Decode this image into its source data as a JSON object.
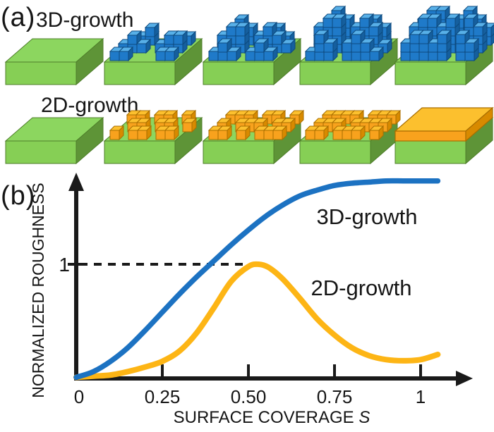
{
  "panel_a": {
    "label": "(a)",
    "row_3d": {
      "label": "3D-growth"
    },
    "row_2d": {
      "label": "2D-growth"
    }
  },
  "panel_b": {
    "label": "(b)",
    "ylabel": "NORMALIZED ROUGHNESS",
    "xlabel_text": "SURFACE COVERAGE ",
    "xlabel_symbol": "S",
    "ytick": "1",
    "xticks": [
      "0",
      "0.25",
      "0.50",
      "0.75",
      "1"
    ]
  },
  "chart_data": {
    "type": "line",
    "title": "",
    "xlabel": "SURFACE COVERAGE S",
    "ylabel": "NORMALIZED ROUGHNESS",
    "xlim": [
      0,
      1.12
    ],
    "ylim": [
      0,
      1.85
    ],
    "xticks": [
      0,
      0.25,
      0.5,
      0.75,
      1
    ],
    "yticks": [
      1
    ],
    "grid": false,
    "legend_position": "inline-labels",
    "dashed_guide": {
      "y": 1,
      "x_start": 0,
      "x_end": 0.53
    },
    "series": [
      {
        "name": "3D-growth",
        "color": "#1c72c2",
        "points": [
          [
            0,
            0.01
          ],
          [
            0.05,
            0.06
          ],
          [
            0.1,
            0.15
          ],
          [
            0.15,
            0.27
          ],
          [
            0.2,
            0.42
          ],
          [
            0.25,
            0.58
          ],
          [
            0.3,
            0.74
          ],
          [
            0.35,
            0.89
          ],
          [
            0.4,
            1.03
          ],
          [
            0.45,
            1.17
          ],
          [
            0.5,
            1.3
          ],
          [
            0.55,
            1.42
          ],
          [
            0.6,
            1.52
          ],
          [
            0.65,
            1.6
          ],
          [
            0.7,
            1.65
          ],
          [
            0.75,
            1.69
          ],
          [
            0.8,
            1.71
          ],
          [
            0.85,
            1.72
          ],
          [
            0.9,
            1.73
          ],
          [
            0.95,
            1.73
          ],
          [
            1.0,
            1.73
          ],
          [
            1.05,
            1.73
          ]
        ]
      },
      {
        "name": "2D-growth",
        "color": "#fdb515",
        "label_color": "#f59a1d",
        "points": [
          [
            0,
            0.01
          ],
          [
            0.05,
            0.02
          ],
          [
            0.1,
            0.03
          ],
          [
            0.15,
            0.06
          ],
          [
            0.2,
            0.1
          ],
          [
            0.25,
            0.15
          ],
          [
            0.3,
            0.24
          ],
          [
            0.35,
            0.4
          ],
          [
            0.4,
            0.62
          ],
          [
            0.45,
            0.85
          ],
          [
            0.5,
            0.98
          ],
          [
            0.53,
            1.0
          ],
          [
            0.56,
            0.97
          ],
          [
            0.6,
            0.87
          ],
          [
            0.65,
            0.7
          ],
          [
            0.7,
            0.52
          ],
          [
            0.75,
            0.38
          ],
          [
            0.8,
            0.27
          ],
          [
            0.85,
            0.2
          ],
          [
            0.9,
            0.165
          ],
          [
            0.95,
            0.155
          ],
          [
            1.0,
            0.165
          ],
          [
            1.05,
            0.21
          ]
        ]
      }
    ]
  },
  "illustration": {
    "stages_3d": [
      null,
      [
        [
          0,
          1,
          2,
          0,
          0,
          1,
          1,
          0
        ],
        [
          1,
          2,
          1,
          0,
          1,
          2,
          2,
          0
        ],
        [
          1,
          1,
          0,
          0,
          0,
          1,
          1,
          0
        ]
      ],
      [
        [
          1,
          3,
          2,
          0,
          1,
          2,
          1,
          0
        ],
        [
          2,
          3,
          3,
          0,
          2,
          3,
          2,
          1
        ],
        [
          1,
          2,
          1,
          0,
          1,
          2,
          1,
          0
        ]
      ],
      [
        [
          2,
          4,
          3,
          0,
          2,
          3,
          2,
          0
        ],
        [
          3,
          4,
          4,
          1,
          3,
          4,
          3,
          1
        ],
        [
          1,
          3,
          2,
          0,
          2,
          3,
          2,
          1
        ]
      ],
      [
        [
          3,
          4,
          4,
          2,
          3,
          4,
          3,
          2
        ],
        [
          3,
          4,
          4,
          3,
          4,
          0,
          4,
          3
        ],
        [
          2,
          3,
          3,
          2,
          3,
          0,
          3,
          2
        ]
      ]
    ],
    "stages_2d": [
      null,
      [
        [
          1,
          1,
          0,
          1,
          1,
          0,
          1,
          0
        ],
        [
          0,
          1,
          1,
          0,
          1,
          1,
          0,
          1
        ],
        [
          1,
          0,
          1,
          1,
          0,
          1,
          1,
          0
        ]
      ],
      [
        [
          1,
          1,
          1,
          0,
          1,
          1,
          0,
          1
        ],
        [
          1,
          0,
          1,
          1,
          1,
          0,
          1,
          1
        ],
        [
          1,
          1,
          0,
          1,
          0,
          1,
          1,
          1
        ]
      ],
      [
        [
          1,
          1,
          1,
          1,
          0,
          1,
          1,
          1
        ],
        [
          1,
          1,
          1,
          0,
          1,
          1,
          1,
          1
        ],
        [
          1,
          1,
          0,
          1,
          1,
          1,
          0,
          1
        ]
      ],
      "full-layer"
    ]
  },
  "colors": {
    "axis": "#1a1a1a",
    "substrate_top": "#8cd65f",
    "substrate_front": "#86cf55",
    "substrate_side": "#5e9437",
    "substrate_outline": "#4e7d2a",
    "cube3d_top": "#58b0e8",
    "cube3d_front": "#1f7ac9",
    "cube3d_side": "#155f9e",
    "cube3d_outline": "#0d4a7f",
    "cube2d_top": "#fcc02e",
    "cube2d_front": "#f8a21d",
    "cube2d_side": "#d88a00",
    "cube2d_outline": "#a96e00"
  }
}
